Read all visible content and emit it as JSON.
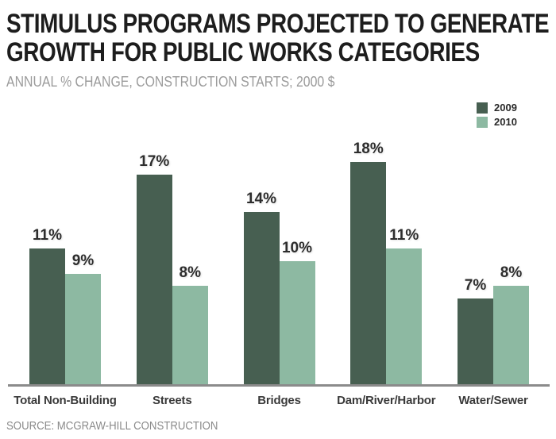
{
  "header": {
    "title_line1": "STIMULUS PROGRAMS PROJECTED TO GENERATE",
    "title_line2": "GROWTH FOR PUBLIC WORKS CATEGORIES",
    "subtitle": "ANNUAL % CHANGE, CONSTRUCTION STARTS; 2000 $"
  },
  "legend": {
    "items": [
      {
        "label": "2009",
        "color": "#475f51"
      },
      {
        "label": "2010",
        "color": "#8db9a2"
      }
    ]
  },
  "source": "SOURCE: MCGRAW-HILL CONSTRUCTION",
  "colors": {
    "series_2009": "#475f51",
    "series_2010": "#8db9a2",
    "baseline": "#8b8b8b",
    "title_text": "#1d1d1d",
    "subtitle_text": "#9b9b9b",
    "source_text": "#8a8a8a"
  },
  "chart_data": {
    "type": "bar",
    "title": "STIMULUS PROGRAMS PROJECTED TO GENERATE GROWTH FOR PUBLIC WORKS CATEGORIES",
    "subtitle": "ANNUAL % CHANGE, CONSTRUCTION STARTS; 2000 $",
    "categories": [
      "Total Non-Building",
      "Streets",
      "Bridges",
      "Dam/River/Harbor",
      "Water/Sewer"
    ],
    "series": [
      {
        "name": "2009",
        "color": "#475f51",
        "values": [
          11,
          17,
          14,
          18,
          7
        ]
      },
      {
        "name": "2010",
        "color": "#8db9a2",
        "values": [
          9,
          8,
          10,
          11,
          8
        ]
      }
    ],
    "unit": "%",
    "value_labels": true,
    "xlabel": "",
    "ylabel": "",
    "ylim": [
      0,
      18
    ],
    "grid": false,
    "axis_ticks": "none",
    "legend_position": "top-right",
    "source": "SOURCE: MCGRAW-HILL CONSTRUCTION"
  }
}
